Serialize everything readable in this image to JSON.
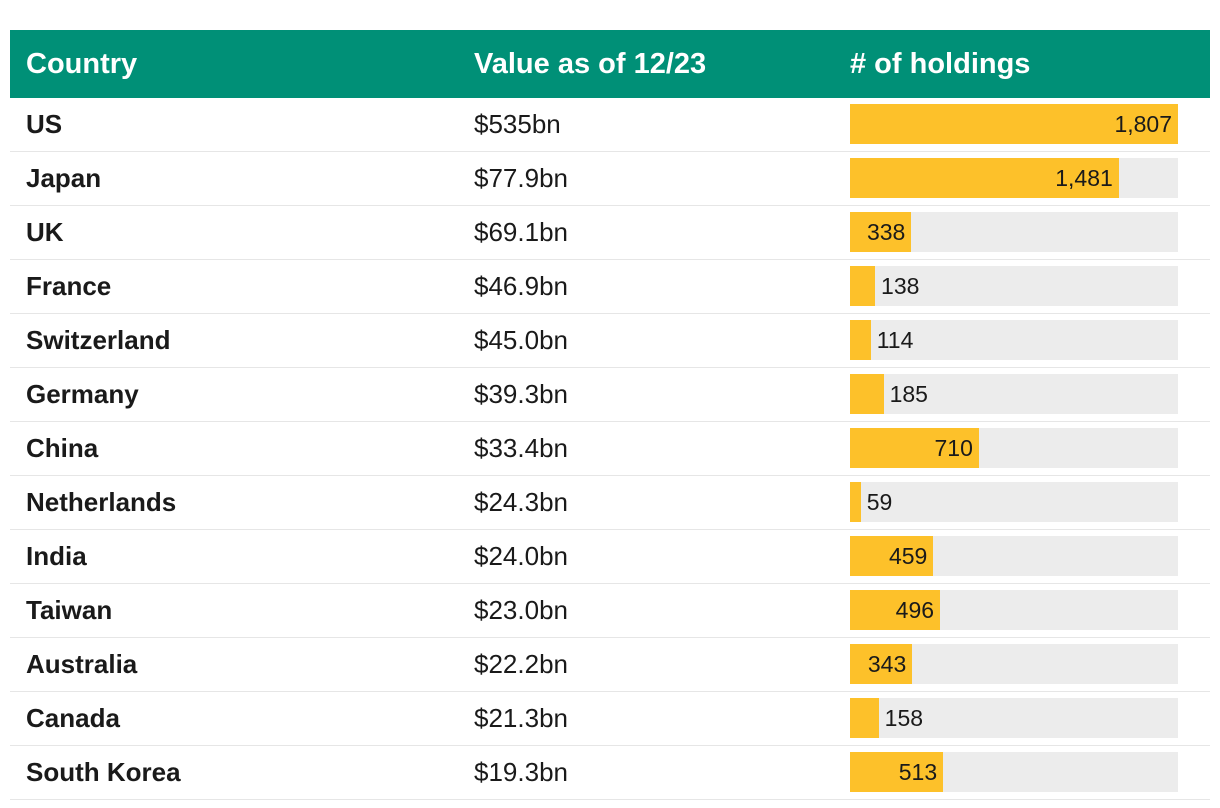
{
  "table": {
    "headers": {
      "country": "Country",
      "value": "Value as of 12/23",
      "holdings": "# of holdings"
    }
  },
  "colors": {
    "header_bg": "#009077",
    "bar": "#fdc12a",
    "track": "#ececec"
  },
  "chart_data": {
    "type": "table",
    "columns": [
      "Country",
      "Value as of 12/23",
      "# of holdings"
    ],
    "bar_max": 1807,
    "rows": [
      {
        "country": "US",
        "value": "$535bn",
        "holdings": 1807,
        "holdings_label": "1,807"
      },
      {
        "country": "Japan",
        "value": "$77.9bn",
        "holdings": 1481,
        "holdings_label": "1,481"
      },
      {
        "country": "UK",
        "value": "$69.1bn",
        "holdings": 338,
        "holdings_label": "338"
      },
      {
        "country": "France",
        "value": "$46.9bn",
        "holdings": 138,
        "holdings_label": "138"
      },
      {
        "country": "Switzerland",
        "value": "$45.0bn",
        "holdings": 114,
        "holdings_label": "114"
      },
      {
        "country": "Germany",
        "value": "$39.3bn",
        "holdings": 185,
        "holdings_label": "185"
      },
      {
        "country": "China",
        "value": "$33.4bn",
        "holdings": 710,
        "holdings_label": "710"
      },
      {
        "country": "Netherlands",
        "value": "$24.3bn",
        "holdings": 59,
        "holdings_label": "59"
      },
      {
        "country": "India",
        "value": "$24.0bn",
        "holdings": 459,
        "holdings_label": "459"
      },
      {
        "country": "Taiwan",
        "value": "$23.0bn",
        "holdings": 496,
        "holdings_label": "496"
      },
      {
        "country": "Australia",
        "value": "$22.2bn",
        "holdings": 343,
        "holdings_label": "343"
      },
      {
        "country": "Canada",
        "value": "$21.3bn",
        "holdings": 158,
        "holdings_label": "158"
      },
      {
        "country": "South Korea",
        "value": "$19.3bn",
        "holdings": 513,
        "holdings_label": "513"
      }
    ]
  }
}
